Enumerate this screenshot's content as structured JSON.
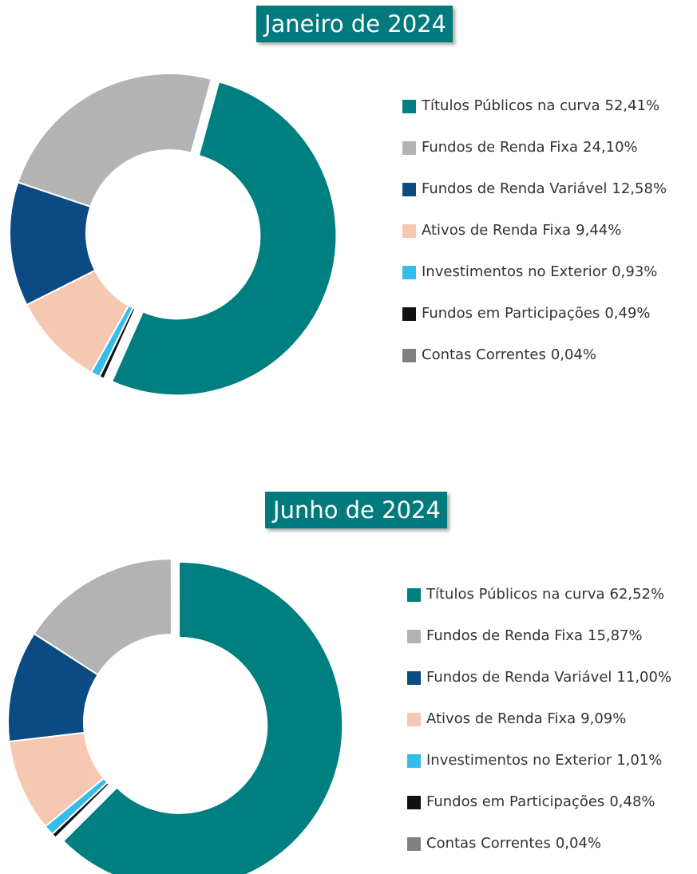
{
  "chart_data": [
    {
      "type": "donut",
      "title": "Janeiro de 2024",
      "categories": [
        "Títulos Públicos na curva",
        "Fundos de Renda Fixa",
        "Fundos de Renda Variável",
        "Ativos de Renda Fixa",
        "Investimentos no Exterior",
        "Fundos em Participações",
        "Contas Correntes"
      ],
      "values": [
        52.41,
        24.1,
        12.58,
        9.44,
        0.93,
        0.49,
        0.04
      ],
      "value_labels": [
        "52,41%",
        "24,10%",
        "12,58%",
        "9,44%",
        "0,93%",
        "0,49%",
        "0,04%"
      ],
      "colors": [
        "#007f80",
        "#b3b3b3",
        "#0b4a82",
        "#f6c7b1",
        "#35bde9",
        "#111111",
        "#808080"
      ]
    },
    {
      "type": "donut",
      "title": "Junho de 2024",
      "categories": [
        "Títulos Públicos na curva",
        "Fundos de Renda Fixa",
        "Fundos de Renda Variável",
        "Ativos de Renda Fixa",
        "Investimentos no Exterior",
        "Fundos em Participações",
        "Contas Correntes"
      ],
      "values": [
        62.52,
        15.87,
        11.0,
        9.09,
        1.01,
        0.48,
        0.04
      ],
      "value_labels": [
        "62,52%",
        "15,87%",
        "11,00%",
        "9,09%",
        "1,01%",
        "0,48%",
        "0,04%"
      ],
      "colors": [
        "#007f80",
        "#b3b3b3",
        "#0b4a82",
        "#f6c7b1",
        "#35bde9",
        "#111111",
        "#808080"
      ]
    }
  ]
}
